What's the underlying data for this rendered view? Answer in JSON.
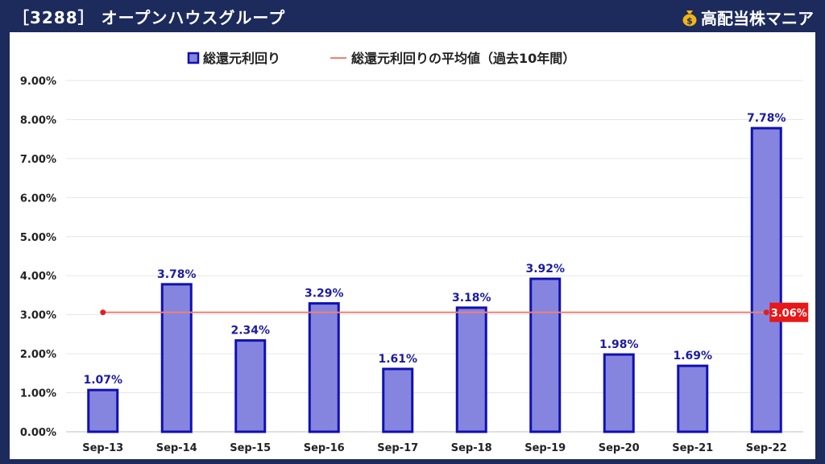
{
  "header": {
    "title": "［3288］ オープンハウスグループ",
    "brand": "高配当株マニア",
    "brand_icon": "money-bag-icon"
  },
  "colors": {
    "header_bg": "#1c2a5c",
    "bar_fill": "#8585e0",
    "bar_stroke": "#1010b0",
    "label_color": "#1c1ca0",
    "avg_line": "#f08070",
    "avg_marker": "#e02020",
    "avg_badge": "#e81818"
  },
  "chart_data": {
    "type": "bar",
    "categories": [
      "Sep-13",
      "Sep-14",
      "Sep-15",
      "Sep-16",
      "Sep-17",
      "Sep-18",
      "Sep-19",
      "Sep-20",
      "Sep-21",
      "Sep-22"
    ],
    "series": [
      {
        "name": "総還元利回り",
        "values": [
          1.07,
          3.78,
          2.34,
          3.29,
          1.61,
          3.18,
          3.92,
          1.98,
          1.69,
          7.78
        ],
        "labels": [
          "1.07%",
          "3.78%",
          "2.34%",
          "3.29%",
          "1.61%",
          "3.18%",
          "3.92%",
          "1.98%",
          "1.69%",
          "7.78%"
        ]
      }
    ],
    "average": {
      "name": "総還元利回りの平均値（過去10年間）",
      "value": 3.06,
      "label": "3.06%"
    },
    "ylim": [
      0,
      9
    ],
    "yticks": [
      0,
      1,
      2,
      3,
      4,
      5,
      6,
      7,
      8,
      9
    ],
    "ytick_labels": [
      "0.00%",
      "1.00%",
      "2.00%",
      "3.00%",
      "4.00%",
      "5.00%",
      "6.00%",
      "7.00%",
      "8.00%",
      "9.00%"
    ],
    "grid": true,
    "legend_position": "top-center",
    "title": "",
    "xlabel": "",
    "ylabel": ""
  }
}
